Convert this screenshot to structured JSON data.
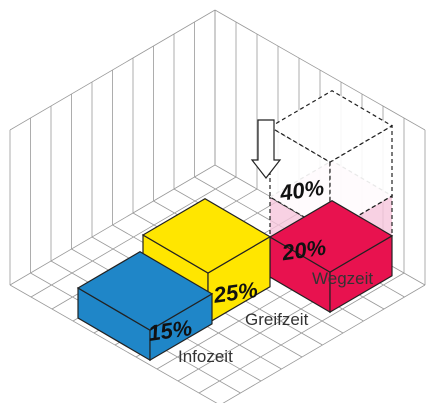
{
  "blocks": [
    {
      "label": "15%",
      "color": "#1f86c8"
    },
    {
      "label": "25%",
      "color": "#ffe600"
    },
    {
      "label": "20%",
      "color": "#e8124f"
    },
    {
      "label": "40%",
      "color": "#f6c6dc"
    }
  ],
  "labels": [
    "Infozeit",
    "Greifzeit",
    "Wegzeit"
  ]
}
